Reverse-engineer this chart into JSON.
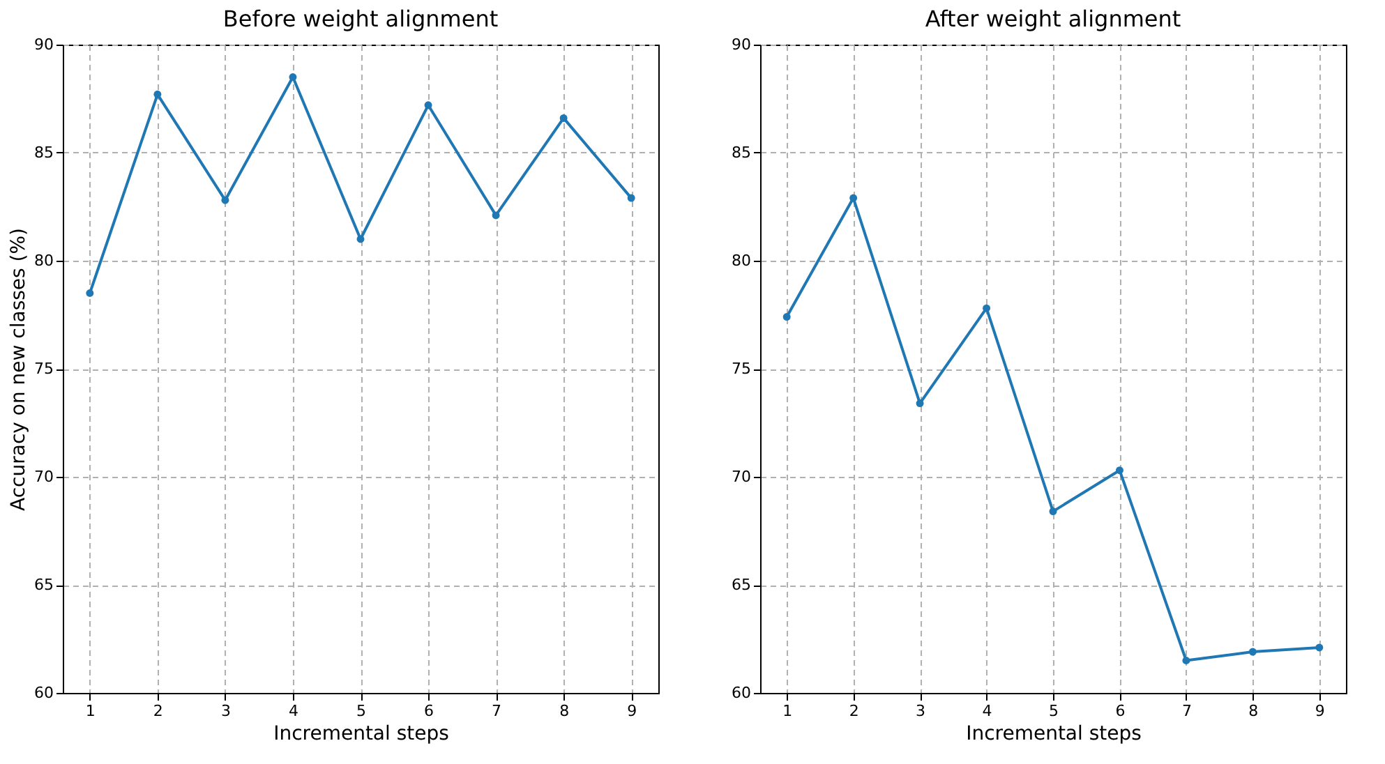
{
  "chart_data": [
    {
      "type": "line",
      "title": "Before weight alignment",
      "xlabel": "Incremental steps",
      "ylabel": "Accuracy on new classes (%)",
      "x": [
        1,
        2,
        3,
        4,
        5,
        6,
        7,
        8,
        9
      ],
      "series": [
        {
          "color": "#1f77b4",
          "values": [
            78.5,
            87.7,
            82.8,
            88.5,
            81.0,
            87.2,
            82.1,
            86.6,
            82.9
          ]
        }
      ],
      "xlim": [
        0.6,
        9.4
      ],
      "xticks": [
        1,
        2,
        3,
        4,
        5,
        6,
        7,
        8,
        9
      ],
      "ylim": [
        60,
        90
      ],
      "yticks": [
        60,
        65,
        70,
        75,
        80,
        85,
        90
      ],
      "grid": true,
      "marker": "circle",
      "line_style": "solid"
    },
    {
      "type": "line",
      "title": "After weight alignment",
      "xlabel": "Incremental steps",
      "x": [
        1,
        2,
        3,
        4,
        5,
        6,
        7,
        8,
        9
      ],
      "series": [
        {
          "color": "#1f77b4",
          "values": [
            77.4,
            82.9,
            73.4,
            77.8,
            68.4,
            70.3,
            61.5,
            61.9,
            62.1
          ]
        }
      ],
      "xlim": [
        0.6,
        9.4
      ],
      "xticks": [
        1,
        2,
        3,
        4,
        5,
        6,
        7,
        8,
        9
      ],
      "ylim": [
        60,
        90
      ],
      "yticks": [
        60,
        65,
        70,
        75,
        80,
        85,
        90
      ],
      "grid": true,
      "marker": "circle",
      "line_style": "solid"
    }
  ]
}
